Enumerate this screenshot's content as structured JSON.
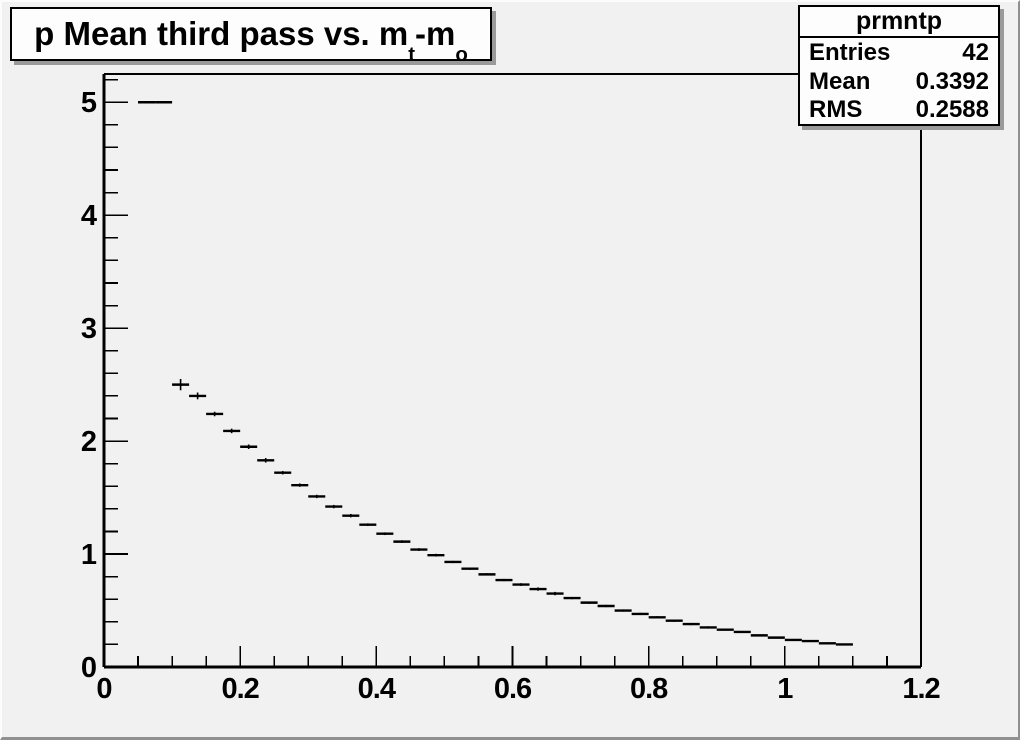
{
  "colors": {
    "canvas_background": "#f1f1f1",
    "pave_fill": "#fdfdfd",
    "pave_shadow": "#9a9a9a",
    "line": "#000000"
  },
  "title": {
    "part1": "p Mean third pass vs. m",
    "sub1": "t",
    "part2": "-m",
    "sub2": "o"
  },
  "stats": {
    "header": "prmntp",
    "rows": [
      {
        "label": "Entries",
        "value": "42"
      },
      {
        "label": "Mean",
        "value": "0.3392"
      },
      {
        "label": "RMS",
        "value": "0.2588"
      }
    ]
  },
  "chart_data": {
    "type": "scatter",
    "subtype": "profile-histogram",
    "title": "p Mean third pass vs. m_t-m_o",
    "xlabel": "",
    "ylabel": "",
    "xlim": [
      0,
      1.2
    ],
    "ylim": [
      0,
      5.25
    ],
    "grid": false,
    "legend": false,
    "x_ticks": [
      {
        "v": 0,
        "label": "0"
      },
      {
        "v": 0.2,
        "label": "0.2"
      },
      {
        "v": 0.4,
        "label": "0.4"
      },
      {
        "v": 0.6,
        "label": "0.6"
      },
      {
        "v": 0.8,
        "label": "0.8"
      },
      {
        "v": 1,
        "label": "1"
      },
      {
        "v": 1.2,
        "label": "1.2"
      }
    ],
    "x_minor_step": 0.05,
    "y_ticks": [
      {
        "v": 0,
        "label": "0"
      },
      {
        "v": 1,
        "label": "1"
      },
      {
        "v": 2,
        "label": "2"
      },
      {
        "v": 3,
        "label": "3"
      },
      {
        "v": 4,
        "label": "4"
      },
      {
        "v": 5,
        "label": "5"
      }
    ],
    "y_minor_step": 0.2,
    "bin_width": 0.025,
    "x": [
      0.0625,
      0.0875,
      0.1125,
      0.1375,
      0.1625,
      0.1875,
      0.2125,
      0.2375,
      0.2625,
      0.2875,
      0.3125,
      0.3375,
      0.3625,
      0.3875,
      0.4125,
      0.4375,
      0.4625,
      0.4875,
      0.5125,
      0.5375,
      0.5625,
      0.5875,
      0.6125,
      0.6375,
      0.6625,
      0.6875,
      0.7125,
      0.7375,
      0.7625,
      0.7875,
      0.8125,
      0.8375,
      0.8625,
      0.8875,
      0.9125,
      0.9375,
      0.9625,
      0.9875,
      1.0125,
      1.0375,
      1.0625,
      1.0875
    ],
    "y": [
      5.0,
      5.0,
      2.5,
      2.4,
      2.24,
      2.09,
      1.95,
      1.83,
      1.72,
      1.61,
      1.51,
      1.42,
      1.34,
      1.26,
      1.18,
      1.11,
      1.04,
      0.99,
      0.93,
      0.87,
      0.82,
      0.77,
      0.73,
      0.69,
      0.65,
      0.61,
      0.57,
      0.54,
      0.5,
      0.47,
      0.44,
      0.41,
      0.38,
      0.35,
      0.33,
      0.31,
      0.28,
      0.26,
      0.24,
      0.23,
      0.21,
      0.2
    ],
    "yerr": [
      0,
      0,
      0.05,
      0.03,
      0.02,
      0.02,
      0.02,
      0.02,
      0.015,
      0.015,
      0.015,
      0.015,
      0.015,
      0.012,
      0.012,
      0.012,
      0.012,
      0.012,
      0.01,
      0.01,
      0.01,
      0.01,
      0.012,
      0.015,
      0.015,
      0.01,
      0.01,
      0.01,
      0.01,
      0.01,
      0.01,
      0.01,
      0.01,
      0.01,
      0.008,
      0.008,
      0.008,
      0.008,
      0.008,
      0.008,
      0.008,
      0.008
    ]
  }
}
